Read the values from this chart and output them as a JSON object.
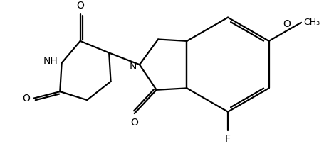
{
  "background_color": "#ffffff",
  "line_color": "#000000",
  "line_width": 1.6,
  "font_size": 10,
  "fig_width": 4.62,
  "fig_height": 2.13,
  "dpi": 100,
  "xlim": [
    0,
    9.0
  ],
  "ylim": [
    0,
    4.2
  ]
}
